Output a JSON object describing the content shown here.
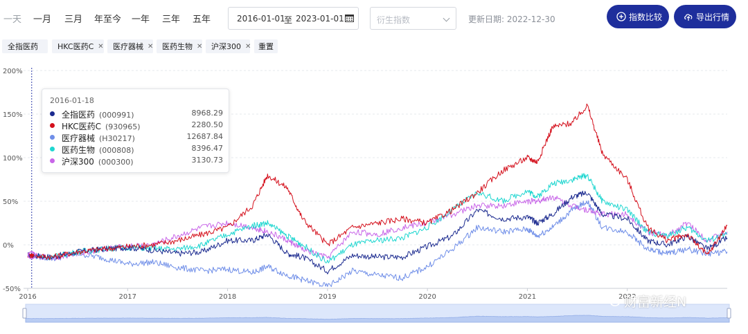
{
  "toolbar": {
    "ranges": [
      "一天",
      "一月",
      "三月",
      "年至今",
      "一年",
      "三年",
      "五年"
    ],
    "date_start": "2016-01-01",
    "date_sep": "至",
    "date_end": "2023-01-01",
    "derive_placeholder": "衍生指数",
    "update_label": "更新日期: 2022-12-30",
    "compare_label": "指数比较",
    "export_label": "导出行情"
  },
  "tags": {
    "items": [
      "全指医药",
      "HKC医药C",
      "医疗器械",
      "医药生物",
      "沪深300"
    ],
    "reset_label": "重置"
  },
  "tooltip": {
    "date": "2016-01-18",
    "rows": [
      {
        "name": "全指医药",
        "code": "(000991)",
        "value": "8968.29",
        "color": "#1b2a8f"
      },
      {
        "name": "HKC医药C",
        "code": "(930965)",
        "value": "2280.50",
        "color": "#d4101c"
      },
      {
        "name": "医疗器械",
        "code": "(H30217)",
        "value": "12687.84",
        "color": "#6f8ee8"
      },
      {
        "name": "医药生物",
        "code": "(000808)",
        "value": "8396.47",
        "color": "#1fd6d0"
      },
      {
        "name": "沪深300",
        "code": "(000300)",
        "value": "3130.73",
        "color": "#c866e8"
      }
    ]
  },
  "watermark": "财富新经N",
  "chart_data": {
    "type": "line",
    "y_ticks": [
      "-50%",
      "0%",
      "50%",
      "100%",
      "150%",
      "200%"
    ],
    "ylim": [
      -50,
      200
    ],
    "x_ticks": [
      "2016",
      "2017",
      "2018",
      "2019",
      "2020",
      "2021",
      "2022"
    ],
    "x_range": [
      2016.0,
      2023.0
    ],
    "x": [
      2016.0,
      2016.25,
      2016.5,
      2016.75,
      2017.0,
      2017.25,
      2017.5,
      2017.75,
      2018.0,
      2018.25,
      2018.4,
      2018.6,
      2018.75,
      2019.0,
      2019.25,
      2019.5,
      2019.75,
      2020.0,
      2020.25,
      2020.5,
      2020.75,
      2021.0,
      2021.1,
      2021.25,
      2021.45,
      2021.6,
      2021.75,
      2022.0,
      2022.2,
      2022.4,
      2022.6,
      2022.8,
      2023.0
    ],
    "series": [
      {
        "name": "全指医药",
        "color": "#1b2a8f",
        "values": [
          -12,
          -14,
          -8,
          -5,
          -3,
          -6,
          -10,
          -8,
          5,
          5,
          12,
          -10,
          -14,
          -30,
          -12,
          -14,
          -14,
          -2,
          10,
          40,
          30,
          32,
          25,
          35,
          55,
          60,
          35,
          30,
          5,
          0,
          10,
          -5,
          8
        ]
      },
      {
        "name": "HKC医药C",
        "color": "#d4101c",
        "values": [
          -12,
          -14,
          -8,
          -5,
          -2,
          0,
          5,
          12,
          20,
          45,
          80,
          65,
          30,
          0,
          20,
          25,
          30,
          25,
          40,
          60,
          85,
          100,
          95,
          135,
          140,
          160,
          105,
          75,
          20,
          5,
          12,
          -12,
          22
        ]
      },
      {
        "name": "医疗器械",
        "color": "#6f8ee8",
        "values": [
          -12,
          -16,
          -10,
          -15,
          -22,
          -20,
          -26,
          -30,
          -28,
          -32,
          -25,
          -35,
          -40,
          -48,
          -30,
          -35,
          -38,
          -25,
          -5,
          20,
          15,
          18,
          10,
          20,
          40,
          50,
          20,
          15,
          -5,
          -10,
          -5,
          -10,
          -8
        ]
      },
      {
        "name": "医药生物",
        "color": "#1fd6d0",
        "values": [
          -12,
          -14,
          -8,
          -5,
          -3,
          -4,
          -5,
          0,
          12,
          22,
          25,
          10,
          0,
          -20,
          0,
          5,
          8,
          20,
          40,
          60,
          50,
          62,
          55,
          70,
          75,
          80,
          50,
          40,
          15,
          10,
          20,
          5,
          12
        ]
      },
      {
        "name": "沪深300",
        "color": "#c866e8",
        "values": [
          -12,
          -15,
          -10,
          -5,
          -2,
          0,
          10,
          20,
          25,
          20,
          15,
          5,
          -5,
          -15,
          15,
          12,
          20,
          25,
          35,
          45,
          45,
          50,
          50,
          55,
          45,
          40,
          35,
          35,
          15,
          10,
          25,
          5,
          15
        ]
      }
    ],
    "cursor_x": 2016.04
  }
}
